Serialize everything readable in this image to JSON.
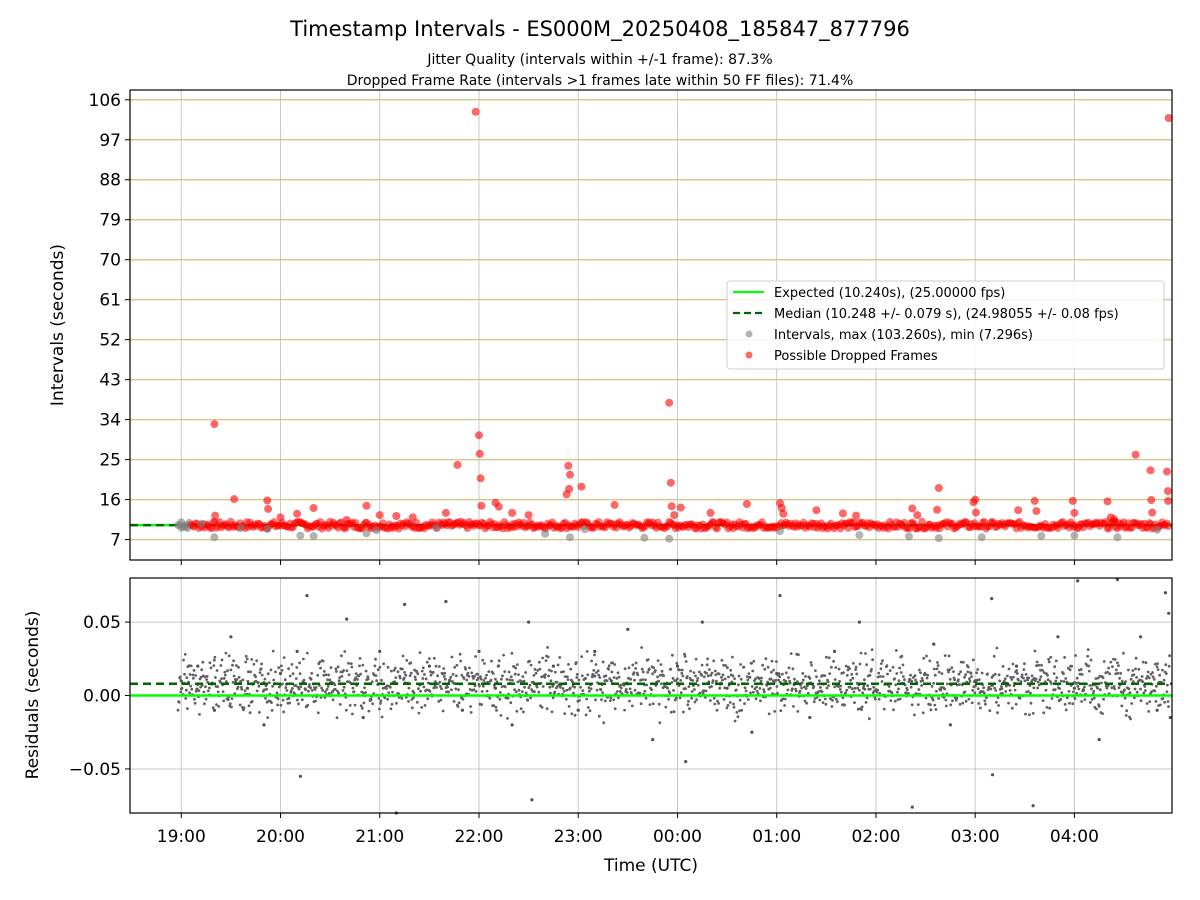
{
  "chart_data": [
    {
      "type": "scatter",
      "title": "Timestamp Intervals - ES000M_20250408_185847_877796",
      "subtitle_lines": [
        "Jitter Quality (intervals within +/-1 frame): 87.3%",
        "Dropped Frame Rate (intervals >1 frames late within 50 FF files): 71.4%"
      ],
      "xlabel": "",
      "ylabel": "Intervals (seconds)",
      "x_axis_type": "time",
      "xlim": [
        "2025-04-08T18:29:00Z",
        "2025-04-09T04:59:00Z"
      ],
      "ylim": [
        2.4,
        108.2
      ],
      "yticks": [
        7,
        16,
        25,
        34,
        43,
        52,
        61,
        70,
        79,
        88,
        97,
        106
      ],
      "ytick_labels": [
        "7",
        "16",
        "25",
        "34",
        "43",
        "52",
        "61",
        "70",
        "79",
        "88",
        "97",
        "106"
      ],
      "grid": "vertical gray at x ticks, horizontal khaki at y ticks",
      "legend_position": "center-right",
      "legend": [
        "Expected (10.240s), (25.00000 fps)",
        "Median (10.248 +/- 0.079 s), (24.98055 +/- 0.08 fps)",
        "Intervals, max (103.260s), min (7.296s)",
        "Possible Dropped Frames"
      ],
      "reference_lines": [
        {
          "name": "Expected",
          "y": 10.24,
          "color": "#00ff00",
          "style": "solid"
        },
        {
          "name": "Median",
          "y": 10.248,
          "color": "#006400",
          "style": "dashed"
        }
      ],
      "series": [
        {
          "name": "Intervals",
          "color": "#808080",
          "points": [
            [
              "2025-04-08T19:00:00Z",
              10.9
            ],
            [
              "2025-04-08T19:03:00Z",
              9.8
            ],
            [
              "2025-04-08T19:12:00Z",
              10.6
            ],
            [
              "2025-04-08T19:20:00Z",
              7.5
            ],
            [
              "2025-04-08T19:36:00Z",
              9.6
            ],
            [
              "2025-04-08T19:52:00Z",
              9.4
            ],
            [
              "2025-04-08T20:12:00Z",
              7.9
            ],
            [
              "2025-04-08T20:20:00Z",
              7.8
            ],
            [
              "2025-04-08T20:52:00Z",
              8.4
            ],
            [
              "2025-04-08T20:58:00Z",
              9.1
            ],
            [
              "2025-04-08T21:34:00Z",
              9.6
            ],
            [
              "2025-04-08T22:40:00Z",
              8.3
            ],
            [
              "2025-04-08T22:55:00Z",
              7.5
            ],
            [
              "2025-04-08T23:04:00Z",
              9.3
            ],
            [
              "2025-04-08T23:40:00Z",
              7.4
            ],
            [
              "2025-04-08T23:55:00Z",
              7.2
            ],
            [
              "2025-04-09T01:02:00Z",
              8.9
            ],
            [
              "2025-04-09T01:50:00Z",
              8.0
            ],
            [
              "2025-04-09T02:20:00Z",
              7.7
            ],
            [
              "2025-04-09T02:38:00Z",
              7.3
            ],
            [
              "2025-04-09T03:04:00Z",
              7.5
            ],
            [
              "2025-04-09T03:40:00Z",
              7.8
            ],
            [
              "2025-04-09T04:00:00Z",
              7.9
            ],
            [
              "2025-04-09T04:26:00Z",
              7.5
            ],
            [
              "2025-04-09T04:50:00Z",
              9.2
            ]
          ]
        },
        {
          "name": "Possible Dropped Frames",
          "color": "#ff0000",
          "points": [
            [
              "2025-04-08T19:20:00Z",
              33.0
            ],
            [
              "2025-04-08T19:20:30Z",
              12.4
            ],
            [
              "2025-04-08T19:32:00Z",
              16.1
            ],
            [
              "2025-04-08T19:52:00Z",
              15.8
            ],
            [
              "2025-04-08T19:52:30Z",
              13.9
            ],
            [
              "2025-04-08T20:00:00Z",
              12.0
            ],
            [
              "2025-04-08T20:10:00Z",
              12.8
            ],
            [
              "2025-04-08T20:20:00Z",
              14.1
            ],
            [
              "2025-04-08T20:40:00Z",
              11.4
            ],
            [
              "2025-04-08T20:52:00Z",
              14.6
            ],
            [
              "2025-04-08T21:00:00Z",
              12.5
            ],
            [
              "2025-04-08T21:10:00Z",
              12.3
            ],
            [
              "2025-04-08T21:20:00Z",
              12.0
            ],
            [
              "2025-04-08T21:40:00Z",
              13.0
            ],
            [
              "2025-04-08T21:47:00Z",
              23.8
            ],
            [
              "2025-04-08T21:58:00Z",
              103.3
            ],
            [
              "2025-04-08T22:00:00Z",
              30.5
            ],
            [
              "2025-04-08T22:00:30Z",
              26.3
            ],
            [
              "2025-04-08T22:01:00Z",
              20.8
            ],
            [
              "2025-04-08T22:01:30Z",
              14.6
            ],
            [
              "2025-04-08T22:10:00Z",
              15.3
            ],
            [
              "2025-04-08T22:12:00Z",
              14.4
            ],
            [
              "2025-04-08T22:20:00Z",
              13.0
            ],
            [
              "2025-04-08T22:30:00Z",
              12.5
            ],
            [
              "2025-04-08T22:54:00Z",
              23.6
            ],
            [
              "2025-04-08T22:55:00Z",
              21.6
            ],
            [
              "2025-04-08T22:54:30Z",
              18.4
            ],
            [
              "2025-04-08T22:53:00Z",
              17.2
            ],
            [
              "2025-04-08T23:02:00Z",
              18.9
            ],
            [
              "2025-04-08T23:22:00Z",
              14.8
            ],
            [
              "2025-04-08T23:55:00Z",
              37.8
            ],
            [
              "2025-04-08T23:56:00Z",
              19.8
            ],
            [
              "2025-04-08T23:56:30Z",
              14.5
            ],
            [
              "2025-04-08T23:58:00Z",
              12.5
            ],
            [
              "2025-04-09T00:02:00Z",
              14.2
            ],
            [
              "2025-04-09T00:20:00Z",
              13.0
            ],
            [
              "2025-04-09T00:42:00Z",
              15.0
            ],
            [
              "2025-04-09T01:02:00Z",
              15.2
            ],
            [
              "2025-04-09T01:03:00Z",
              14.1
            ],
            [
              "2025-04-09T01:04:00Z",
              12.8
            ],
            [
              "2025-04-09T01:24:00Z",
              13.6
            ],
            [
              "2025-04-09T01:40:00Z",
              12.9
            ],
            [
              "2025-04-09T01:48:00Z",
              12.4
            ],
            [
              "2025-04-09T02:22:00Z",
              14.0
            ],
            [
              "2025-04-09T02:25:00Z",
              12.5
            ],
            [
              "2025-04-09T02:38:00Z",
              18.6
            ],
            [
              "2025-04-09T02:37:00Z",
              13.7
            ],
            [
              "2025-04-09T03:00:00Z",
              16.0
            ],
            [
              "2025-04-09T02:59:00Z",
              15.4
            ],
            [
              "2025-04-09T03:00:30Z",
              13.1
            ],
            [
              "2025-04-09T03:26:00Z",
              13.6
            ],
            [
              "2025-04-09T03:36:00Z",
              15.7
            ],
            [
              "2025-04-09T03:37:00Z",
              13.4
            ],
            [
              "2025-04-09T03:59:00Z",
              15.7
            ],
            [
              "2025-04-09T04:00:00Z",
              13.0
            ],
            [
              "2025-04-09T04:20:00Z",
              15.6
            ],
            [
              "2025-04-09T04:22:00Z",
              12.0
            ],
            [
              "2025-04-09T04:24:00Z",
              11.6
            ],
            [
              "2025-04-09T04:24:30Z",
              11.0
            ],
            [
              "2025-04-09T04:37:00Z",
              26.1
            ],
            [
              "2025-04-09T04:46:00Z",
              22.6
            ],
            [
              "2025-04-09T04:46:30Z",
              15.9
            ],
            [
              "2025-04-09T04:47:00Z",
              13.1
            ],
            [
              "2025-04-09T04:56:00Z",
              22.3
            ],
            [
              "2025-04-09T04:56:30Z",
              17.9
            ],
            [
              "2025-04-09T04:56:40Z",
              15.7
            ],
            [
              "2025-04-09T04:57:00Z",
              101.9
            ]
          ]
        }
      ]
    },
    {
      "type": "scatter",
      "title": "",
      "xlabel": "Time (UTC)",
      "ylabel": "Residuals (seconds)",
      "x_axis_type": "time",
      "xlim": [
        "2025-04-08T18:29:00Z",
        "2025-04-09T04:59:00Z"
      ],
      "ylim": [
        -0.08,
        0.08
      ],
      "yticks": [
        -0.05,
        0.0,
        0.05
      ],
      "ytick_labels": [
        "−0.05",
        "0.00",
        "0.05"
      ],
      "xticks": [
        "2025-04-08T19:00:00Z",
        "2025-04-08T20:00:00Z",
        "2025-04-08T21:00:00Z",
        "2025-04-08T22:00:00Z",
        "2025-04-08T23:00:00Z",
        "2025-04-09T00:00:00Z",
        "2025-04-09T01:00:00Z",
        "2025-04-09T02:00:00Z",
        "2025-04-09T03:00:00Z",
        "2025-04-09T04:00:00Z"
      ],
      "xtick_labels": [
        "19:00",
        "20:00",
        "21:00",
        "22:00",
        "23:00",
        "00:00",
        "01:00",
        "02:00",
        "03:00",
        "04:00"
      ],
      "grid": true,
      "reference_lines": [
        {
          "name": "Expected",
          "y": 0.0,
          "color": "#00ff00",
          "style": "solid"
        },
        {
          "name": "Median",
          "y": 0.008,
          "color": "#006400",
          "style": "dashed"
        }
      ],
      "series": [
        {
          "name": "Residuals",
          "color": "#505050",
          "points": [
            [
              "2025-04-08T19:00:00Z",
              0.01
            ],
            [
              "2025-04-08T19:10:00Z",
              0.02
            ],
            [
              "2025-04-08T19:20:00Z",
              -0.01
            ],
            [
              "2025-04-08T19:30:00Z",
              0.04
            ],
            [
              "2025-04-08T19:40:00Z",
              0.005
            ],
            [
              "2025-04-08T19:50:00Z",
              -0.02
            ],
            [
              "2025-04-08T20:00:00Z",
              0.015
            ],
            [
              "2025-04-08T20:10:00Z",
              0.03
            ],
            [
              "2025-04-08T20:12:00Z",
              -0.055
            ],
            [
              "2025-04-08T20:16:00Z",
              0.068
            ],
            [
              "2025-04-08T20:30:00Z",
              0.0
            ],
            [
              "2025-04-08T20:40:00Z",
              0.052
            ],
            [
              "2025-04-08T20:50:00Z",
              -0.015
            ],
            [
              "2025-04-08T21:00:00Z",
              0.03
            ],
            [
              "2025-04-08T21:10:00Z",
              -0.08
            ],
            [
              "2025-04-08T21:15:00Z",
              0.062
            ],
            [
              "2025-04-08T21:30:00Z",
              0.02
            ],
            [
              "2025-04-08T21:40:00Z",
              0.064
            ],
            [
              "2025-04-08T21:50:00Z",
              -0.01
            ],
            [
              "2025-04-08T22:00:00Z",
              0.03
            ],
            [
              "2025-04-08T22:10:00Z",
              0.005
            ],
            [
              "2025-04-08T22:20:00Z",
              -0.02
            ],
            [
              "2025-04-08T22:30:00Z",
              0.05
            ],
            [
              "2025-04-08T22:32:00Z",
              -0.071
            ],
            [
              "2025-04-08T22:45:00Z",
              0.02
            ],
            [
              "2025-04-08T23:00:00Z",
              -0.01
            ],
            [
              "2025-04-08T23:10:00Z",
              0.03
            ],
            [
              "2025-04-08T23:20:00Z",
              0.01
            ],
            [
              "2025-04-08T23:30:00Z",
              0.045
            ],
            [
              "2025-04-08T23:45:00Z",
              -0.03
            ],
            [
              "2025-04-09T00:00:00Z",
              0.02
            ],
            [
              "2025-04-09T00:05:00Z",
              -0.045
            ],
            [
              "2025-04-09T00:15:00Z",
              0.05
            ],
            [
              "2025-04-09T00:30:00Z",
              0.005
            ],
            [
              "2025-04-09T00:45:00Z",
              -0.025
            ],
            [
              "2025-04-09T01:00:00Z",
              0.015
            ],
            [
              "2025-04-09T01:02:00Z",
              0.068
            ],
            [
              "2025-04-09T01:20:00Z",
              -0.015
            ],
            [
              "2025-04-09T01:35:00Z",
              0.03
            ],
            [
              "2025-04-09T01:50:00Z",
              0.05
            ],
            [
              "2025-04-09T02:05:00Z",
              0.0
            ],
            [
              "2025-04-09T02:22:00Z",
              -0.076
            ],
            [
              "2025-04-09T02:35:00Z",
              0.035
            ],
            [
              "2025-04-09T02:45:00Z",
              -0.02
            ],
            [
              "2025-04-09T03:00:00Z",
              0.01
            ],
            [
              "2025-04-09T03:10:00Z",
              0.066
            ],
            [
              "2025-04-09T03:10:30Z",
              -0.054
            ],
            [
              "2025-04-09T03:25:00Z",
              0.02
            ],
            [
              "2025-04-09T03:35:00Z",
              -0.075
            ],
            [
              "2025-04-09T03:50:00Z",
              0.04
            ],
            [
              "2025-04-09T04:00:00Z",
              0.005
            ],
            [
              "2025-04-09T04:02:00Z",
              0.078
            ],
            [
              "2025-04-09T04:15:00Z",
              -0.03
            ],
            [
              "2025-04-09T04:26:00Z",
              0.079
            ],
            [
              "2025-04-09T04:40:00Z",
              0.04
            ],
            [
              "2025-04-09T04:50:00Z",
              -0.01
            ],
            [
              "2025-04-09T04:55:00Z",
              0.07
            ],
            [
              "2025-04-09T04:57:00Z",
              0.056
            ],
            [
              "2025-04-09T04:58:00Z",
              -0.015
            ]
          ]
        }
      ]
    }
  ]
}
